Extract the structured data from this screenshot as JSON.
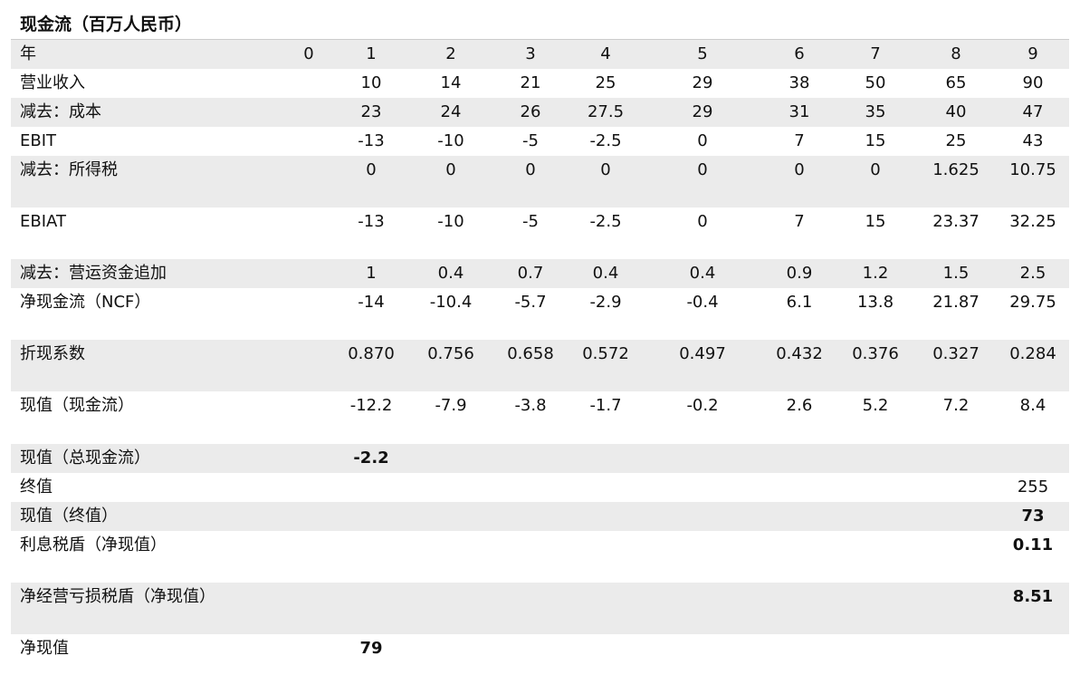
{
  "title": "现金流（百万人民币）",
  "table": {
    "header": {
      "label": "年",
      "cells": [
        "0",
        "1",
        "2",
        "3",
        "4",
        "5",
        "6",
        "7",
        "8",
        "9"
      ]
    },
    "rows": [
      {
        "label": "营业收入",
        "cells": [
          null,
          "10",
          "14",
          "21",
          "25",
          "29",
          "38",
          "50",
          "65",
          "90"
        ]
      },
      {
        "label": "减去：成本",
        "cells": [
          null,
          "23",
          "24",
          "26",
          "27.5",
          "29",
          "31",
          "35",
          "40",
          "47"
        ]
      },
      {
        "label": "EBIT",
        "cells": [
          null,
          "-13",
          "-10",
          "-5",
          "-2.5",
          "0",
          "7",
          "15",
          "25",
          "43"
        ]
      },
      {
        "label": "减去：所得税",
        "cells": [
          null,
          "0",
          "0",
          "0",
          "0",
          "0",
          "0",
          "0",
          "1.625",
          "10.75"
        ]
      },
      {
        "label": "EBIAT",
        "cells": [
          null,
          "-13",
          "-10",
          "-5",
          "-2.5",
          "0",
          "7",
          "15",
          "23.37",
          "32.25"
        ]
      },
      {
        "label": "减去：营运资金追加",
        "cells": [
          null,
          "1",
          "0.4",
          "0.7",
          "0.4",
          "0.4",
          "0.9",
          "1.2",
          "1.5",
          "2.5"
        ]
      },
      {
        "label": "净现金流（NCF）",
        "cells": [
          null,
          "-14",
          "-10.4",
          "-5.7",
          "-2.9",
          "-0.4",
          "6.1",
          "13.8",
          "21.87",
          "29.75"
        ]
      },
      {
        "label": "折现系数",
        "cells": [
          null,
          "0.870",
          "0.756",
          "0.658",
          "0.572",
          "0.497",
          "0.432",
          "0.376",
          "0.327",
          "0.284"
        ]
      },
      {
        "label": "现值（现金流）",
        "cells": [
          null,
          "-12.2",
          "-7.9",
          "-3.8",
          "-1.7",
          "-0.2",
          "2.6",
          "5.2",
          "7.2",
          "8.4"
        ]
      },
      {
        "label": "现值（总现金流）",
        "bold": true,
        "cells": [
          null,
          "-2.2",
          null,
          null,
          null,
          null,
          null,
          null,
          null,
          null
        ]
      },
      {
        "label": "终值",
        "cells": [
          null,
          null,
          null,
          null,
          null,
          null,
          null,
          null,
          null,
          "255"
        ]
      },
      {
        "label": "现值（终值）",
        "bold": true,
        "cells": [
          null,
          null,
          null,
          null,
          null,
          null,
          null,
          null,
          null,
          "73"
        ]
      },
      {
        "label": "利息税盾（净现值）",
        "bold": true,
        "cells": [
          null,
          null,
          null,
          null,
          null,
          null,
          null,
          null,
          null,
          "0.11"
        ]
      },
      {
        "label": "净经营亏损税盾（净现值）",
        "bold": true,
        "cells": [
          null,
          null,
          null,
          null,
          null,
          null,
          null,
          null,
          null,
          "8.51"
        ]
      },
      {
        "label": "净现值",
        "bold": true,
        "cells": [
          null,
          "79",
          null,
          null,
          null,
          null,
          null,
          null,
          null,
          null
        ]
      }
    ]
  }
}
